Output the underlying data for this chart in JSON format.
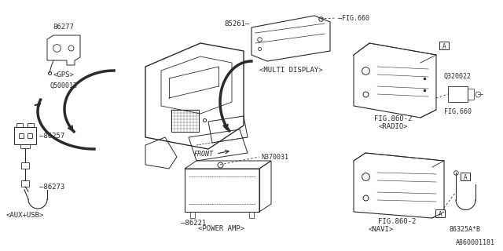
{
  "bg_color": "#ffffff",
  "line_color": "#2a2a2a",
  "fig_num": "A860001181",
  "gps_label": "86277",
  "gps_sub": "<GPS>",
  "gps_sub2": "Q500013",
  "multi_label": "85261",
  "multi_sub": "<MULTI DISPLAY>",
  "fig660_top": "FIG.660",
  "aux_label": "86257",
  "aux_wire": "86273",
  "aux_sub": "<AUX+USB>",
  "pa_label": "86221",
  "pa_sub": "<POWER AMP>",
  "pa_bolt": "N370031",
  "radio_fig": "FIG.860-2",
  "radio_sub": "<RADIO>",
  "radio_conn": "Q320022",
  "radio_fig2": "FIG.660",
  "navi_fig": "FIG.860-2",
  "navi_sub": "<NAVI>",
  "navi_conn": "86325A*B",
  "front_label": "FRONT"
}
